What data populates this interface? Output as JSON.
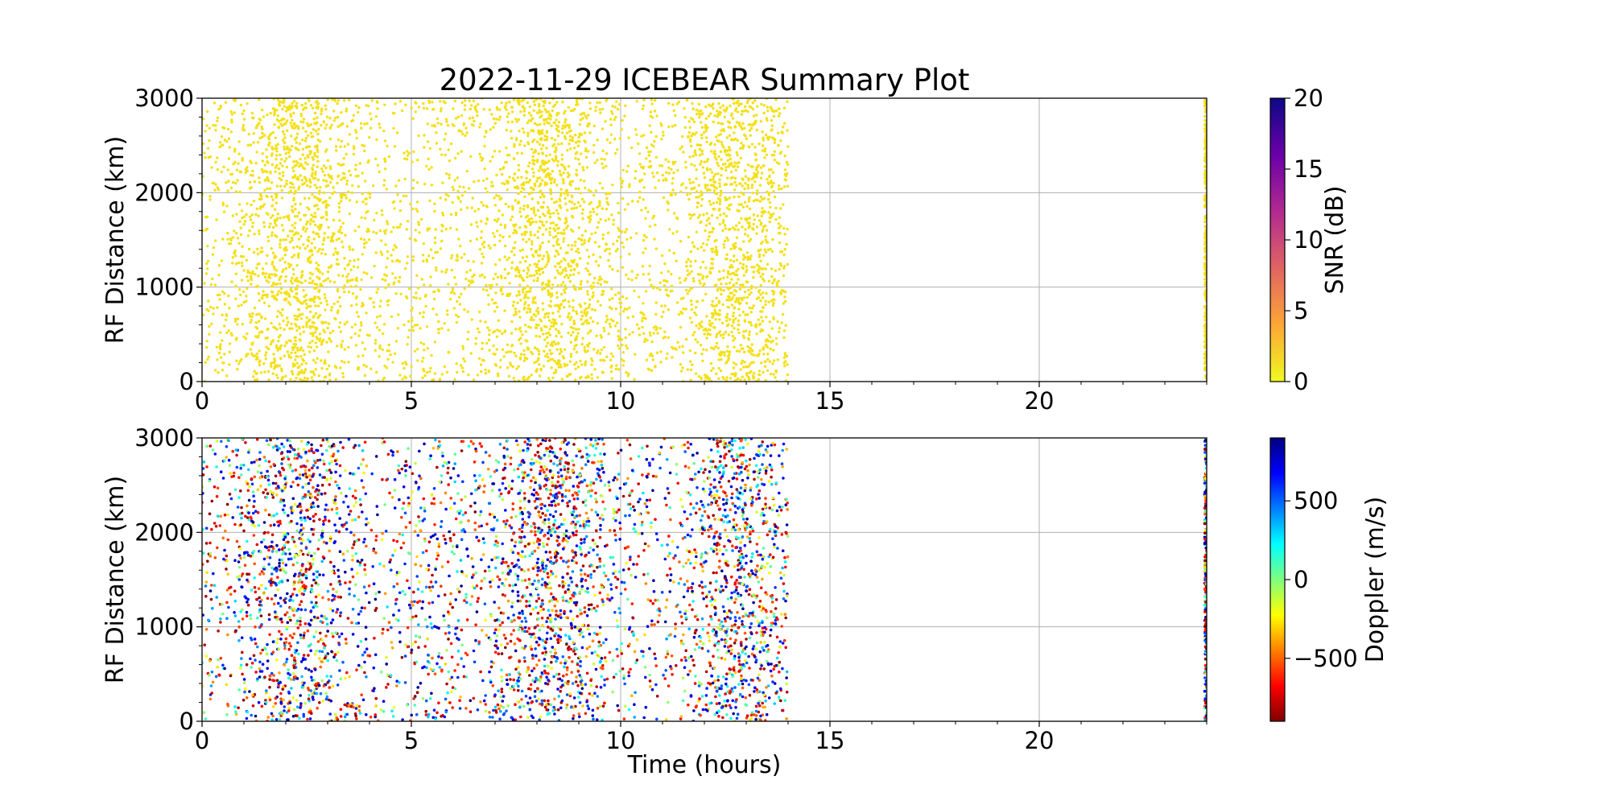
{
  "chart_data": [
    {
      "type": "scatter",
      "title": "2022-11-29 ICEBEAR Summary Plot",
      "xlabel": "",
      "ylabel": "RF Distance (km)",
      "xlim": [
        0,
        24
      ],
      "ylim": [
        0,
        3000
      ],
      "x_ticks": [
        0,
        5,
        10,
        15,
        20
      ],
      "y_ticks": [
        0,
        1000,
        2000,
        3000
      ],
      "grid": true,
      "marker_color": "#f5e017",
      "data_extent": {
        "x_ranges": [
          [
            0,
            14
          ],
          [
            23.95,
            24
          ]
        ],
        "y_range": [
          0,
          3000
        ]
      },
      "density_peaks_hours": [
        2.2,
        8.3,
        12.8
      ],
      "colorbar": {
        "label": "SNR (dB)",
        "range": [
          0,
          20
        ],
        "ticks": [
          0,
          5,
          10,
          15,
          20
        ],
        "colormap": "plasma_r",
        "colors": [
          "#f0f921",
          "#fca636",
          "#e16462",
          "#b12a90",
          "#6a00a8",
          "#0d0887"
        ]
      }
    },
    {
      "type": "scatter",
      "title": "",
      "xlabel": "Time (hours)",
      "ylabel": "RF Distance (km)",
      "xlim": [
        0,
        24
      ],
      "ylim": [
        0,
        3000
      ],
      "x_ticks": [
        0,
        5,
        10,
        15,
        20
      ],
      "y_ticks": [
        0,
        1000,
        2000,
        3000
      ],
      "grid": true,
      "data_extent": {
        "x_ranges": [
          [
            0,
            14
          ],
          [
            23.95,
            24
          ]
        ],
        "y_range": [
          0,
          3000
        ]
      },
      "density_peaks_hours": [
        2.2,
        8.3,
        12.8
      ],
      "colorbar": {
        "label": "Doppler (m/s)",
        "range": [
          -900,
          900
        ],
        "ticks": [
          -500,
          0,
          500
        ],
        "tick_labels": [
          "−500",
          "0",
          "500"
        ],
        "colormap": "jet_r",
        "colors": [
          "#7f0000",
          "#ff0000",
          "#ff7f00",
          "#ffff00",
          "#7fff7f",
          "#00ffff",
          "#007fff",
          "#0000ff",
          "#00007f"
        ]
      }
    }
  ]
}
